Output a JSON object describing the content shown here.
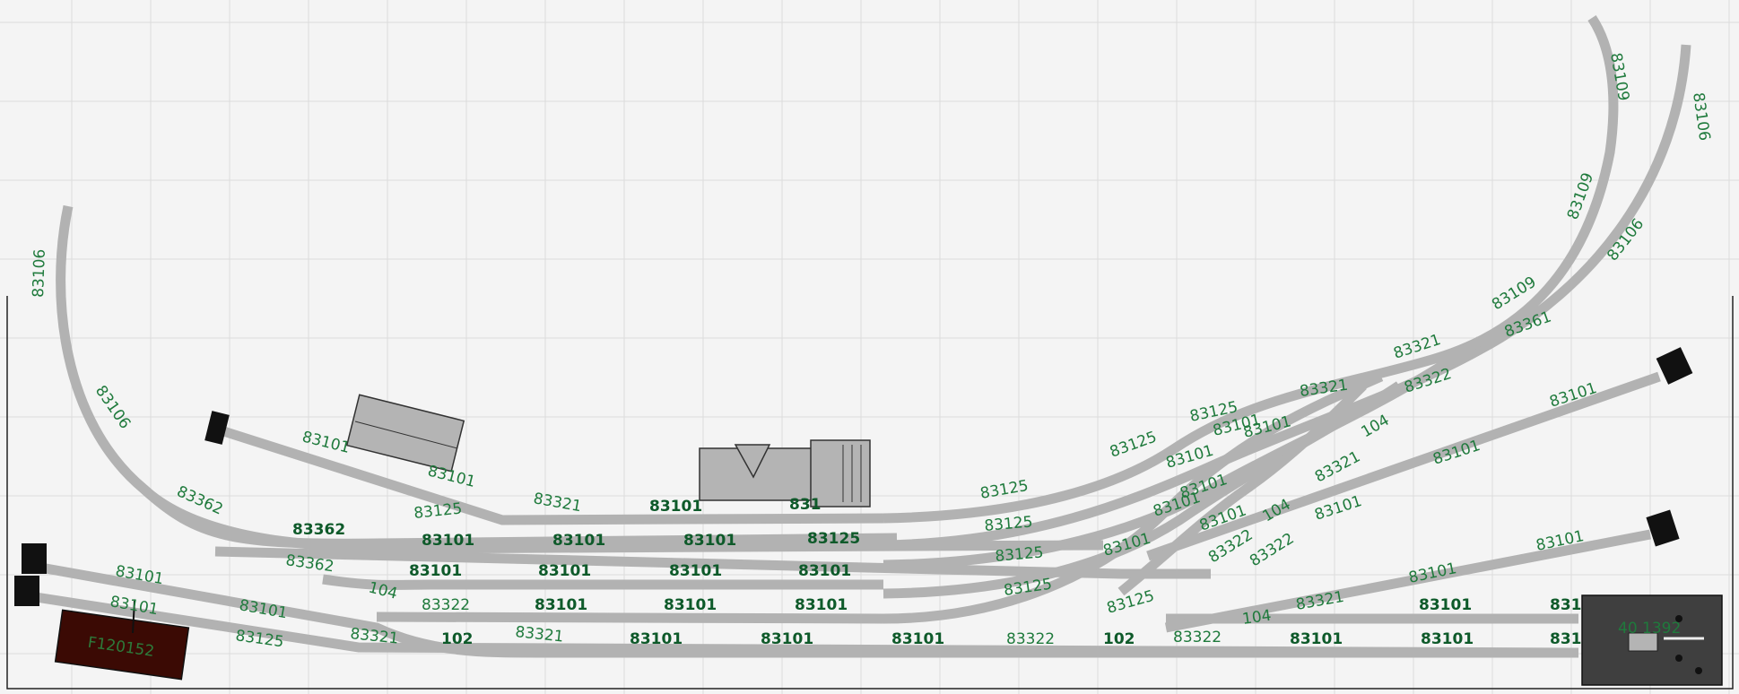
{
  "labels": {
    "l_83106_a": "83106",
    "l_83106_b": "83106",
    "l_83362_a": "83362",
    "l_83362_b": "83362",
    "l_83362_c": "83362",
    "l_83101_s": "83101",
    "l_83101_s2": "83101",
    "l_83125_c": "83125",
    "l_83321_c": "83321",
    "l_83101_m1": "83101",
    "l_831_cut": "831",
    "l_83125_m": "83125",
    "l_83125_c2": "83125",
    "l_83125_c3": "83125",
    "l_83321_c2": "83321",
    "l_83321_c3": "83321",
    "l_83109_a": "83109",
    "l_83109_b": "83109",
    "l_83109_c": "83109",
    "l_83106_c": "83106",
    "l_83106_d": "83106",
    "l_83361": "83361",
    "l_83322_a": "83322",
    "l_104_a": "104",
    "l_83101_t1": "83101",
    "l_83101_t2": "83101",
    "l_83101_r1": "83101",
    "l_83101_r2": "83101",
    "l_83101_r3": "83101",
    "l_83101_r4": "83101",
    "l_83101_r5": "83101",
    "l_83101_r6": "83101",
    "l_83125_r1": "83125",
    "l_83125_r2": "83125",
    "l_83125_r3": "83125",
    "l_83101_r7": "83101",
    "l_83101_r8": "83101",
    "l_83101_r9": "83101",
    "l_83101_r10": "83101",
    "l_83101_r11": "83101",
    "l_83101_r12": "83101",
    "l_83101_r13": "83101",
    "l_83321_r": "83321",
    "l_104_b": "104",
    "l_83322_b": "83322",
    "l_104_c": "104",
    "l_83322_c": "83322",
    "l_83101_l1": "83101",
    "l_83101_l2": "83101",
    "l_83101_l3": "83101",
    "l_83125_l": "83125",
    "l_83321_l": "83321",
    "l_102_a": "102",
    "l_83321_l2": "83321",
    "l_83101_b1": "83101",
    "l_83101_b2": "83101",
    "l_83101_b3": "83101",
    "l_83322_d": "83322",
    "l_102_b": "102",
    "l_83322_e": "83322",
    "l_104_d": "104",
    "l_83101_b4": "83101",
    "l_83101_b5": "83101",
    "l_831_b": "831",
    "l_831_c": "831",
    "l_83125_s": "83125",
    "l_83322_s": "83322",
    "l_83101_e1": "83101",
    "l_83101_e2": "83101",
    "l_83321_e": "83321",
    "l_83101_e3": "83101",
    "l_83101_e4": "83101",
    "l_83101_e5": "83101",
    "l_83101_e6": "83101",
    "l_83101_e7": "83101",
    "l_83101_e8": "83101"
  },
  "wagon": {
    "label": "F120152",
    "color": "#3b0a04"
  },
  "station_box": {
    "label": "40 1392",
    "color": "#3f3f3f"
  },
  "colors": {
    "track": "#b2b2b2",
    "label_text": "#1f7a3c",
    "background": "#f4f4f4",
    "grid": "#dcdcdc"
  },
  "icons": {
    "buffer_stop": "buffer-stop-icon",
    "building": "building-icon"
  }
}
